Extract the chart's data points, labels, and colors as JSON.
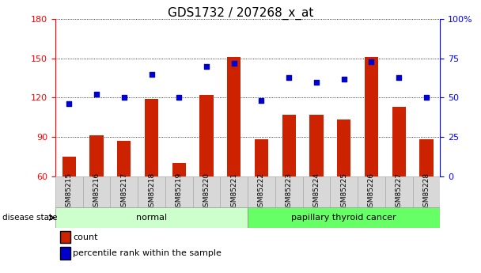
{
  "title": "GDS1732 / 207268_x_at",
  "samples": [
    "GSM85215",
    "GSM85216",
    "GSM85217",
    "GSM85218",
    "GSM85219",
    "GSM85220",
    "GSM85221",
    "GSM85222",
    "GSM85223",
    "GSM85224",
    "GSM85225",
    "GSM85226",
    "GSM85227",
    "GSM85228"
  ],
  "counts": [
    75,
    91,
    87,
    119,
    70,
    122,
    151,
    88,
    107,
    107,
    103,
    151,
    113,
    88
  ],
  "percentiles": [
    46,
    52,
    50,
    65,
    50,
    70,
    72,
    48,
    63,
    60,
    62,
    73,
    63,
    50
  ],
  "ylim_left": [
    60,
    180
  ],
  "ylim_right": [
    0,
    100
  ],
  "yticks_left": [
    60,
    90,
    120,
    150,
    180
  ],
  "yticks_right": [
    0,
    25,
    50,
    75,
    100
  ],
  "groups": [
    {
      "label": "normal",
      "start": 0,
      "end": 7,
      "color": "#ccffcc"
    },
    {
      "label": "papillary thyroid cancer",
      "start": 7,
      "end": 14,
      "color": "#66ff66"
    }
  ],
  "bar_color": "#cc2200",
  "dot_color": "#0000cc",
  "bg_color": "#d8d8d8",
  "bar_width": 0.5,
  "disease_state_label": "disease state",
  "legend_count": "count",
  "legend_percentile": "percentile rank within the sample",
  "title_fontsize": 11,
  "tick_fontsize": 8,
  "sample_fontsize": 6.5
}
